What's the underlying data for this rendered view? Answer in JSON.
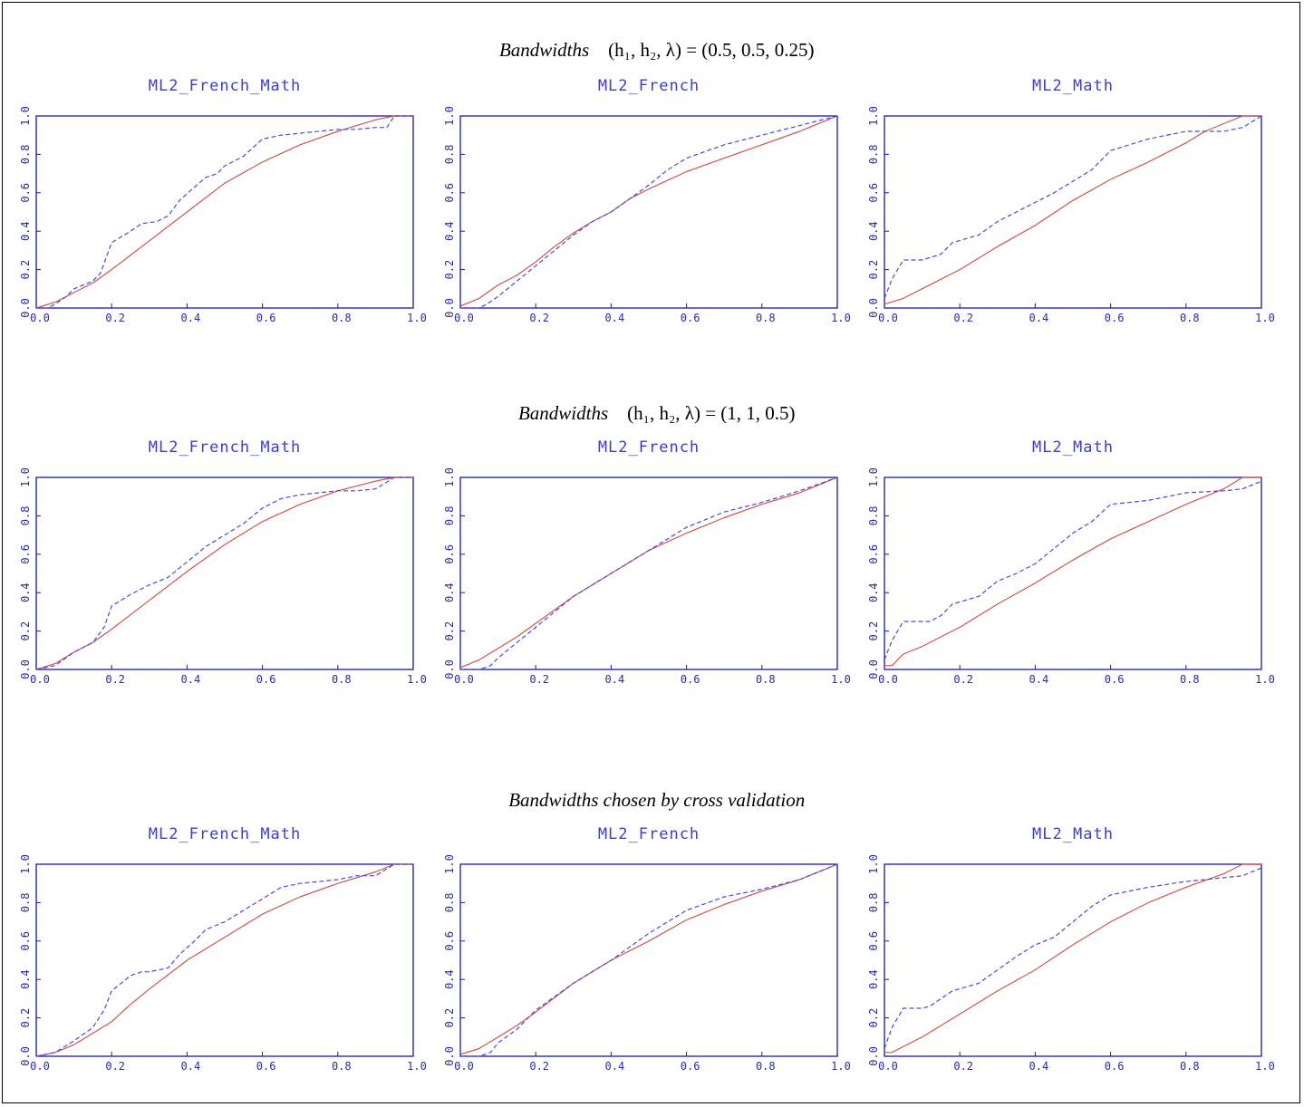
{
  "sections": [
    {
      "title_italic": "Bandwidths",
      "title_rest": "(h₁, h₂, λ) = (0.5, 0.5, 0.25)"
    },
    {
      "title_italic": "Bandwidths",
      "title_rest": "(h₁, h₂, λ) = (1, 1, 0.5)"
    },
    {
      "title_italic": "Bandwidths chosen by cross validation",
      "title_rest": ""
    }
  ],
  "colors": {
    "axis": "#1a1aa0",
    "solid": "#d0544c",
    "dashed": "#4a4ad8",
    "title": "#3d3dcc"
  },
  "chart_data": [
    {
      "type": "line",
      "title": "ML2_French_Math",
      "xlim": [
        0,
        1
      ],
      "ylim": [
        0,
        1
      ],
      "xticks": [
        "0.0",
        "0.2",
        "0.4",
        "0.6",
        "0.8",
        "1.0"
      ],
      "yticks": [
        "0.0",
        "0.2",
        "0.4",
        "0.6",
        "0.8",
        "1.0"
      ],
      "series": [
        {
          "style": "solid",
          "x": [
            0,
            0.05,
            0.1,
            0.15,
            0.2,
            0.3,
            0.4,
            0.5,
            0.6,
            0.7,
            0.8,
            0.9,
            0.95,
            1
          ],
          "y": [
            0,
            0.03,
            0.08,
            0.13,
            0.2,
            0.35,
            0.5,
            0.65,
            0.76,
            0.85,
            0.92,
            0.98,
            1,
            1
          ]
        },
        {
          "style": "dashed",
          "x": [
            0,
            0.03,
            0.05,
            0.08,
            0.1,
            0.15,
            0.17,
            0.2,
            0.25,
            0.28,
            0.32,
            0.35,
            0.38,
            0.42,
            0.45,
            0.48,
            0.5,
            0.55,
            0.6,
            0.65,
            0.7,
            0.8,
            0.85,
            0.9,
            0.93,
            0.95,
            1
          ],
          "y": [
            0,
            0,
            0.02,
            0.06,
            0.1,
            0.14,
            0.18,
            0.34,
            0.4,
            0.44,
            0.45,
            0.48,
            0.56,
            0.63,
            0.68,
            0.7,
            0.74,
            0.79,
            0.88,
            0.9,
            0.91,
            0.93,
            0.93,
            0.94,
            0.94,
            1,
            1
          ]
        }
      ]
    },
    {
      "type": "line",
      "title": "ML2_French",
      "xlim": [
        0,
        1
      ],
      "ylim": [
        0,
        1
      ],
      "xticks": [
        "0.0",
        "0.2",
        "0.4",
        "0.6",
        "0.8",
        "1.0"
      ],
      "yticks": [
        "0.0",
        "0.2",
        "0.4",
        "0.6",
        "0.8",
        "1.0"
      ],
      "series": [
        {
          "style": "solid",
          "x": [
            0,
            0.05,
            0.1,
            0.15,
            0.2,
            0.25,
            0.3,
            0.35,
            0.4,
            0.45,
            0.5,
            0.6,
            0.7,
            0.8,
            0.9,
            1
          ],
          "y": [
            0.01,
            0.05,
            0.12,
            0.17,
            0.24,
            0.32,
            0.39,
            0.45,
            0.5,
            0.57,
            0.62,
            0.71,
            0.78,
            0.85,
            0.92,
            1
          ]
        },
        {
          "style": "dashed",
          "x": [
            0,
            0.05,
            0.07,
            0.1,
            0.15,
            0.2,
            0.25,
            0.3,
            0.35,
            0.4,
            0.45,
            0.5,
            0.55,
            0.6,
            0.7,
            0.8,
            0.9,
            1
          ],
          "y": [
            0,
            0,
            0.02,
            0.06,
            0.14,
            0.22,
            0.3,
            0.38,
            0.45,
            0.5,
            0.57,
            0.64,
            0.72,
            0.78,
            0.85,
            0.9,
            0.95,
            1
          ]
        }
      ]
    },
    {
      "type": "line",
      "title": "ML2_Math",
      "xlim": [
        0,
        1
      ],
      "ylim": [
        0,
        1
      ],
      "xticks": [
        "0.0",
        "0.2",
        "0.4",
        "0.6",
        "0.8",
        "1.0"
      ],
      "yticks": [
        "0.0",
        "0.2",
        "0.4",
        "0.6",
        "0.8",
        "1.0"
      ],
      "series": [
        {
          "style": "solid",
          "x": [
            0,
            0.05,
            0.1,
            0.2,
            0.3,
            0.4,
            0.5,
            0.6,
            0.7,
            0.8,
            0.85,
            0.9,
            0.95,
            1
          ],
          "y": [
            0.02,
            0.05,
            0.1,
            0.2,
            0.32,
            0.43,
            0.56,
            0.67,
            0.76,
            0.86,
            0.92,
            0.96,
            1,
            1
          ]
        },
        {
          "style": "dashed",
          "x": [
            0,
            0.02,
            0.05,
            0.1,
            0.15,
            0.18,
            0.25,
            0.3,
            0.35,
            0.4,
            0.45,
            0.5,
            0.55,
            0.6,
            0.7,
            0.8,
            0.9,
            0.95,
            1
          ],
          "y": [
            0.05,
            0.15,
            0.25,
            0.25,
            0.28,
            0.34,
            0.38,
            0.45,
            0.5,
            0.55,
            0.6,
            0.66,
            0.72,
            0.82,
            0.88,
            0.92,
            0.92,
            0.94,
            1
          ]
        }
      ]
    },
    {
      "type": "line",
      "title": "ML2_French_Math",
      "xlim": [
        0,
        1
      ],
      "ylim": [
        0,
        1
      ],
      "xticks": [
        "0.0",
        "0.2",
        "0.4",
        "0.6",
        "0.8",
        "1.0"
      ],
      "yticks": [
        "0.0",
        "0.2",
        "0.4",
        "0.6",
        "0.8",
        "1.0"
      ],
      "series": [
        {
          "style": "solid",
          "x": [
            0,
            0.05,
            0.1,
            0.15,
            0.2,
            0.3,
            0.4,
            0.5,
            0.6,
            0.7,
            0.8,
            0.9,
            0.95,
            1
          ],
          "y": [
            0,
            0.03,
            0.09,
            0.14,
            0.21,
            0.36,
            0.51,
            0.65,
            0.77,
            0.86,
            0.93,
            0.98,
            1,
            1
          ]
        },
        {
          "style": "dashed",
          "x": [
            0,
            0.05,
            0.1,
            0.15,
            0.18,
            0.2,
            0.25,
            0.3,
            0.35,
            0.4,
            0.45,
            0.5,
            0.55,
            0.6,
            0.65,
            0.7,
            0.8,
            0.85,
            0.9,
            0.95,
            1
          ],
          "y": [
            0,
            0.02,
            0.09,
            0.14,
            0.22,
            0.33,
            0.39,
            0.44,
            0.48,
            0.56,
            0.64,
            0.7,
            0.76,
            0.84,
            0.89,
            0.91,
            0.93,
            0.93,
            0.94,
            1,
            1
          ]
        }
      ]
    },
    {
      "type": "line",
      "title": "ML2_French",
      "xlim": [
        0,
        1
      ],
      "ylim": [
        0,
        1
      ],
      "xticks": [
        "0.0",
        "0.2",
        "0.4",
        "0.6",
        "0.8",
        "1.0"
      ],
      "yticks": [
        "0.0",
        "0.2",
        "0.4",
        "0.6",
        "0.8",
        "1.0"
      ],
      "series": [
        {
          "style": "solid",
          "x": [
            0,
            0.05,
            0.1,
            0.15,
            0.2,
            0.3,
            0.4,
            0.5,
            0.6,
            0.7,
            0.8,
            0.9,
            1
          ],
          "y": [
            0.01,
            0.05,
            0.11,
            0.17,
            0.24,
            0.38,
            0.5,
            0.62,
            0.71,
            0.79,
            0.86,
            0.92,
            1
          ]
        },
        {
          "style": "dashed",
          "x": [
            0,
            0.05,
            0.08,
            0.1,
            0.15,
            0.2,
            0.3,
            0.4,
            0.5,
            0.6,
            0.7,
            0.8,
            0.9,
            1
          ],
          "y": [
            0,
            0,
            0.02,
            0.06,
            0.14,
            0.22,
            0.38,
            0.5,
            0.62,
            0.74,
            0.82,
            0.87,
            0.93,
            1
          ]
        }
      ]
    },
    {
      "type": "line",
      "title": "ML2_Math",
      "xlim": [
        0,
        1
      ],
      "ylim": [
        0,
        1
      ],
      "xticks": [
        "0.0",
        "0.2",
        "0.4",
        "0.6",
        "0.8",
        "1.0"
      ],
      "yticks": [
        "0.0",
        "0.2",
        "0.4",
        "0.6",
        "0.8",
        "1.0"
      ],
      "series": [
        {
          "style": "solid",
          "x": [
            0,
            0.02,
            0.05,
            0.1,
            0.2,
            0.3,
            0.4,
            0.5,
            0.6,
            0.7,
            0.8,
            0.9,
            0.95,
            1
          ],
          "y": [
            0.02,
            0.02,
            0.08,
            0.12,
            0.22,
            0.34,
            0.45,
            0.57,
            0.68,
            0.77,
            0.86,
            0.94,
            1,
            1
          ]
        },
        {
          "style": "dashed",
          "x": [
            0,
            0.02,
            0.05,
            0.08,
            0.12,
            0.15,
            0.18,
            0.25,
            0.3,
            0.35,
            0.4,
            0.45,
            0.5,
            0.55,
            0.6,
            0.7,
            0.8,
            0.9,
            0.95,
            1
          ],
          "y": [
            0.05,
            0.15,
            0.25,
            0.25,
            0.25,
            0.28,
            0.34,
            0.38,
            0.46,
            0.5,
            0.55,
            0.63,
            0.71,
            0.77,
            0.86,
            0.88,
            0.92,
            0.93,
            0.94,
            0.98
          ]
        }
      ]
    },
    {
      "type": "line",
      "title": "ML2_French_Math",
      "xlim": [
        0,
        1
      ],
      "ylim": [
        0,
        1
      ],
      "xticks": [
        "0.0",
        "0.2",
        "0.4",
        "0.6",
        "0.8",
        "1.0"
      ],
      "yticks": [
        "0.0",
        "0.2",
        "0.4",
        "0.6",
        "0.8",
        "1.0"
      ],
      "series": [
        {
          "style": "solid",
          "x": [
            0,
            0.05,
            0.1,
            0.15,
            0.2,
            0.25,
            0.3,
            0.4,
            0.5,
            0.6,
            0.7,
            0.8,
            0.9,
            0.95,
            1
          ],
          "y": [
            0,
            0.02,
            0.06,
            0.12,
            0.18,
            0.27,
            0.35,
            0.5,
            0.62,
            0.74,
            0.83,
            0.9,
            0.96,
            1,
            1
          ]
        },
        {
          "style": "dashed",
          "x": [
            0,
            0.05,
            0.1,
            0.15,
            0.18,
            0.2,
            0.25,
            0.28,
            0.3,
            0.35,
            0.38,
            0.42,
            0.45,
            0.5,
            0.55,
            0.6,
            0.65,
            0.7,
            0.8,
            0.85,
            0.9,
            0.95,
            1
          ],
          "y": [
            0,
            0.02,
            0.08,
            0.15,
            0.24,
            0.34,
            0.42,
            0.44,
            0.44,
            0.46,
            0.53,
            0.6,
            0.66,
            0.7,
            0.76,
            0.82,
            0.88,
            0.9,
            0.92,
            0.94,
            0.94,
            1,
            1
          ]
        }
      ]
    },
    {
      "type": "line",
      "title": "ML2_French",
      "xlim": [
        0,
        1
      ],
      "ylim": [
        0,
        1
      ],
      "xticks": [
        "0.0",
        "0.2",
        "0.4",
        "0.6",
        "0.8",
        "1.0"
      ],
      "yticks": [
        "0.0",
        "0.2",
        "0.4",
        "0.6",
        "0.8",
        "1.0"
      ],
      "series": [
        {
          "style": "solid",
          "x": [
            0,
            0.05,
            0.1,
            0.15,
            0.2,
            0.3,
            0.4,
            0.5,
            0.6,
            0.7,
            0.8,
            0.9,
            1
          ],
          "y": [
            0.01,
            0.04,
            0.1,
            0.16,
            0.23,
            0.38,
            0.5,
            0.6,
            0.71,
            0.79,
            0.86,
            0.92,
            1
          ]
        },
        {
          "style": "dashed",
          "x": [
            0,
            0.05,
            0.08,
            0.1,
            0.15,
            0.2,
            0.3,
            0.4,
            0.5,
            0.6,
            0.7,
            0.8,
            0.9,
            1
          ],
          "y": [
            0,
            0,
            0.02,
            0.07,
            0.14,
            0.24,
            0.38,
            0.5,
            0.64,
            0.76,
            0.83,
            0.87,
            0.92,
            1
          ]
        }
      ]
    },
    {
      "type": "line",
      "title": "ML2_Math",
      "xlim": [
        0,
        1
      ],
      "ylim": [
        0,
        1
      ],
      "xticks": [
        "0.0",
        "0.2",
        "0.4",
        "0.6",
        "0.8",
        "1.0"
      ],
      "yticks": [
        "0.0",
        "0.2",
        "0.4",
        "0.6",
        "0.8",
        "1.0"
      ],
      "series": [
        {
          "style": "solid",
          "x": [
            0,
            0.02,
            0.05,
            0.1,
            0.2,
            0.3,
            0.4,
            0.5,
            0.6,
            0.7,
            0.8,
            0.9,
            0.95,
            1
          ],
          "y": [
            0.02,
            0.02,
            0.05,
            0.1,
            0.22,
            0.34,
            0.45,
            0.58,
            0.7,
            0.8,
            0.88,
            0.95,
            1,
            1
          ]
        },
        {
          "style": "dashed",
          "x": [
            0,
            0.02,
            0.05,
            0.1,
            0.12,
            0.15,
            0.18,
            0.25,
            0.3,
            0.35,
            0.4,
            0.45,
            0.5,
            0.55,
            0.6,
            0.7,
            0.8,
            0.9,
            0.95,
            1
          ],
          "y": [
            0.04,
            0.15,
            0.25,
            0.25,
            0.26,
            0.3,
            0.34,
            0.38,
            0.45,
            0.52,
            0.58,
            0.62,
            0.7,
            0.78,
            0.84,
            0.88,
            0.91,
            0.93,
            0.94,
            0.98
          ]
        }
      ]
    }
  ]
}
